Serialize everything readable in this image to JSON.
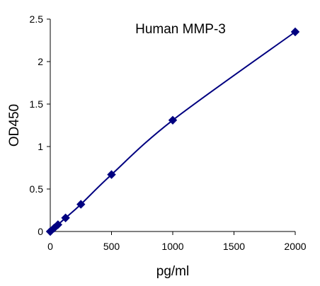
{
  "chart_data": {
    "type": "line",
    "title": "Human  MMP-3",
    "xlabel": "pg/ml",
    "ylabel": "OD450",
    "xlim": [
      0,
      2000
    ],
    "ylim": [
      0,
      2.5
    ],
    "xticks": [
      0,
      500,
      1000,
      1500,
      2000
    ],
    "yticks": [
      0,
      0.5,
      1,
      1.5,
      2,
      2.5
    ],
    "xtick_labels": [
      "0",
      "500",
      "1000",
      "1500",
      "2000"
    ],
    "ytick_labels": [
      "0",
      "0.5",
      "1",
      "1.5",
      "2",
      "2.5"
    ],
    "grid": false,
    "legend": "none",
    "series": [
      {
        "x": [
          0,
          31.25,
          62.5,
          125,
          250,
          500,
          1000,
          2000
        ],
        "y": [
          0.0,
          0.04,
          0.08,
          0.16,
          0.32,
          0.67,
          1.31,
          2.35
        ],
        "color": "#000080",
        "marker": "diamond",
        "line": "smooth"
      }
    ]
  }
}
